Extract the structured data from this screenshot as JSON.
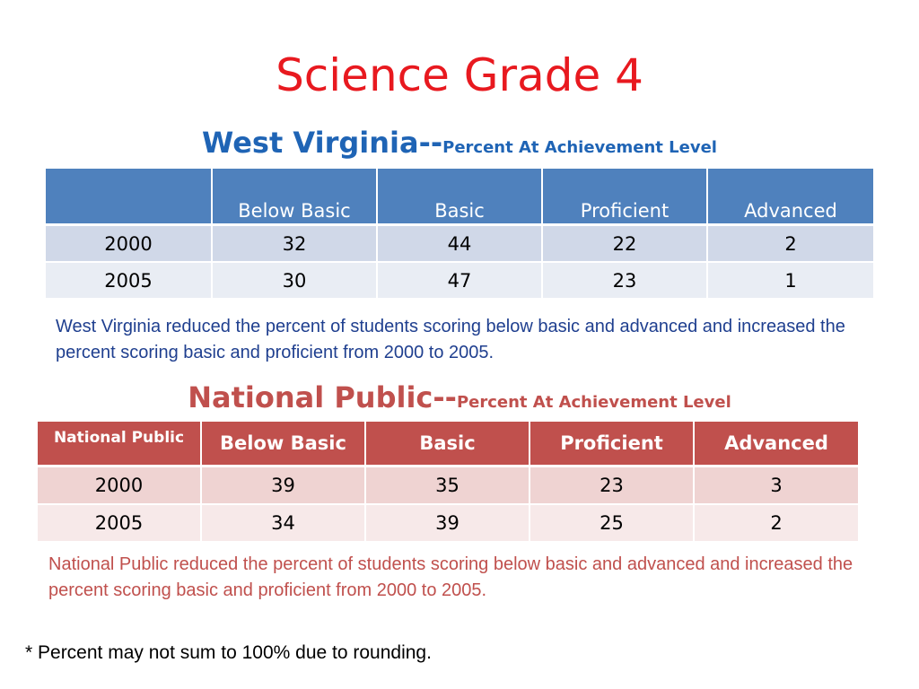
{
  "title": "Science Grade 4",
  "west_virginia": {
    "heading": "West Virginia--",
    "subheading": "Percent At Achievement Level",
    "columns": [
      "",
      "Below Basic",
      "Basic",
      "Proficient",
      "Advanced"
    ],
    "rows": [
      {
        "year": "2000",
        "below_basic": "32",
        "basic": "44",
        "proficient": "22",
        "advanced": "2"
      },
      {
        "year": "2005",
        "below_basic": "30",
        "basic": "47",
        "proficient": "23",
        "advanced": "1"
      }
    ],
    "note": "West Virginia reduced the percent of students scoring below basic and advanced and increased the percent scoring basic and proficient from 2000 to 2005."
  },
  "national_public": {
    "heading": "National Public--",
    "subheading": "Percent At Achievement Level",
    "columns": [
      "National Public",
      "Below Basic",
      "Basic",
      "Proficient",
      "Advanced"
    ],
    "rows": [
      {
        "year": "2000",
        "below_basic": "39",
        "basic": "35",
        "proficient": "23",
        "advanced": "3"
      },
      {
        "year": "2005",
        "below_basic": "34",
        "basic": "39",
        "proficient": "25",
        "advanced": "2"
      }
    ],
    "note": "National Public reduced the percent of students scoring below basic and advanced and increased the percent scoring basic and proficient from 2000 to 2005."
  },
  "footnote": "* Percent may not sum to 100% due to rounding.",
  "colors": {
    "title": "#e8191f",
    "wv_accent": "#4f81bd",
    "np_accent": "#c0504d"
  }
}
